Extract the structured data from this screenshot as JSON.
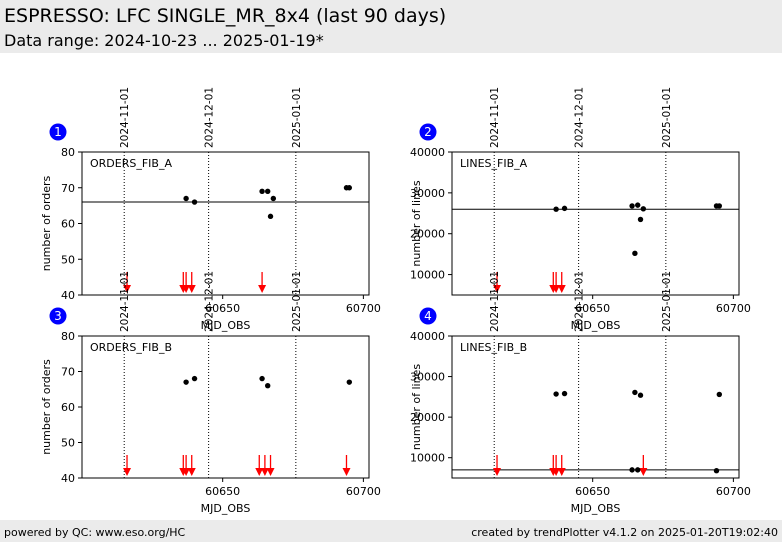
{
  "header": {
    "title": "ESPRESSO: LFC SINGLE_MR_8x4 (last 90 days)",
    "subtitle": "Data range: 2024-10-23 ... 2025-01-19*"
  },
  "footer": {
    "left": "powered by QC: www.eso.org/HC",
    "right": "created by trendPlotter v4.1.2 on 2025-01-20T19:02:40"
  },
  "colors": {
    "header_bg": "#ebebeb",
    "points": "#000000",
    "outlier_arrows": "#ff0000",
    "badge": "#0000ff"
  },
  "chart_data": [
    {
      "type": "scatter",
      "panel": "1",
      "label": "ORDERS_FIB_A",
      "xlabel": "MJD_OBS",
      "ylabel": "number of orders",
      "xlim": [
        60600,
        60702
      ],
      "ylim": [
        40,
        80
      ],
      "xticks": [
        60650,
        60700
      ],
      "yticks": [
        40,
        50,
        60,
        70,
        80
      ],
      "date_markers": [
        {
          "label": "2024-11-01",
          "x": 60615
        },
        {
          "label": "2024-12-01",
          "x": 60645
        },
        {
          "label": "2025-01-01",
          "x": 60676
        }
      ],
      "reference_line": 66,
      "points": [
        [
          60637,
          67
        ],
        [
          60640,
          66
        ],
        [
          60664,
          69
        ],
        [
          60666,
          69
        ],
        [
          60667,
          62
        ],
        [
          60668,
          67
        ],
        [
          60694,
          70
        ],
        [
          60695,
          70
        ]
      ],
      "outliers_below": [
        60616,
        60636,
        60637,
        60639,
        60664
      ]
    },
    {
      "type": "scatter",
      "panel": "2",
      "label": "LINES_FIB_A",
      "xlabel": "MJD_OBS",
      "ylabel": "number of lines",
      "xlim": [
        60600,
        60702
      ],
      "ylim": [
        5000,
        40000
      ],
      "xticks": [
        60650,
        60700
      ],
      "yticks": [
        10000,
        20000,
        30000,
        40000
      ],
      "date_markers": [
        {
          "label": "2024-11-01",
          "x": 60615
        },
        {
          "label": "2024-12-01",
          "x": 60645
        },
        {
          "label": "2025-01-01",
          "x": 60676
        }
      ],
      "reference_line": 26000,
      "points": [
        [
          60637,
          26000
        ],
        [
          60640,
          26200
        ],
        [
          60664,
          26800
        ],
        [
          60666,
          27000
        ],
        [
          60667,
          23500
        ],
        [
          60668,
          26100
        ],
        [
          60665,
          15200
        ],
        [
          60694,
          26800
        ],
        [
          60695,
          26800
        ]
      ],
      "outliers_below": [
        60616,
        60636,
        60637,
        60639
      ]
    },
    {
      "type": "scatter",
      "panel": "3",
      "label": "ORDERS_FIB_B",
      "xlabel": "MJD_OBS",
      "ylabel": "number of orders",
      "xlim": [
        60600,
        60702
      ],
      "ylim": [
        40,
        80
      ],
      "xticks": [
        60650,
        60700
      ],
      "yticks": [
        40,
        50,
        60,
        70,
        80
      ],
      "date_markers": [
        {
          "label": "2024-11-01",
          "x": 60615
        },
        {
          "label": "2024-12-01",
          "x": 60645
        },
        {
          "label": "2025-01-01",
          "x": 60676
        }
      ],
      "reference_line": null,
      "points": [
        [
          60637,
          67
        ],
        [
          60640,
          68
        ],
        [
          60664,
          68
        ],
        [
          60666,
          66
        ],
        [
          60695,
          67
        ]
      ],
      "outliers_below": [
        60616,
        60636,
        60637,
        60639,
        60663,
        60665,
        60667,
        60694
      ]
    },
    {
      "type": "scatter",
      "panel": "4",
      "label": "LINES_FIB_B",
      "xlabel": "MJD_OBS",
      "ylabel": "number of lines",
      "xlim": [
        60600,
        60702
      ],
      "ylim": [
        5000,
        40000
      ],
      "xticks": [
        60650,
        60700
      ],
      "yticks": [
        10000,
        20000,
        30000,
        40000
      ],
      "date_markers": [
        {
          "label": "2024-11-01",
          "x": 60615
        },
        {
          "label": "2024-12-01",
          "x": 60645
        },
        {
          "label": "2025-01-01",
          "x": 60676
        }
      ],
      "reference_line": 7000,
      "points": [
        [
          60637,
          25700
        ],
        [
          60640,
          25800
        ],
        [
          60665,
          26100
        ],
        [
          60667,
          25400
        ],
        [
          60695,
          25600
        ],
        [
          60664,
          7000
        ],
        [
          60666,
          7000
        ],
        [
          60694,
          6800
        ]
      ],
      "outliers_below": [
        60616,
        60636,
        60637,
        60639,
        60668
      ]
    }
  ]
}
